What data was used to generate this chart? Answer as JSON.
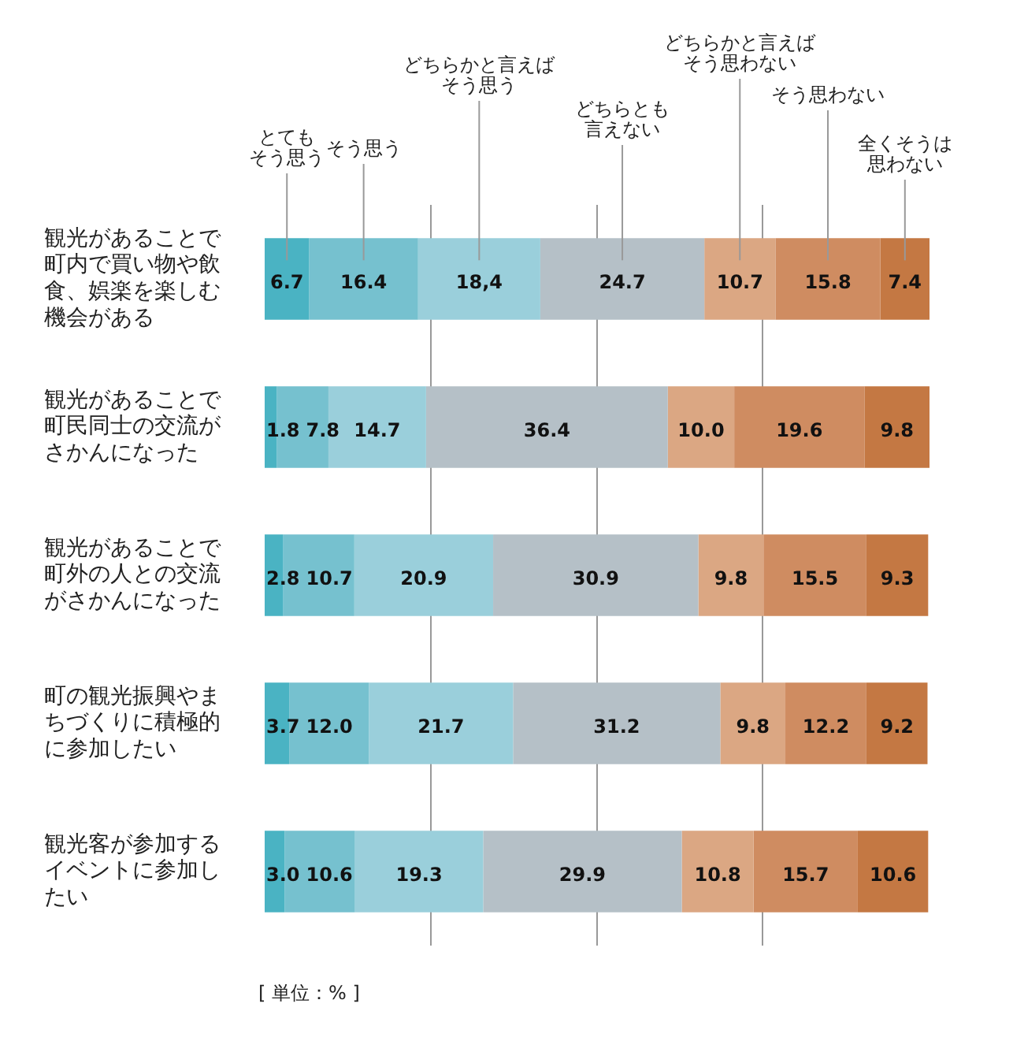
{
  "chart_data": {
    "type": "bar",
    "orientation": "horizontal",
    "stacked": true,
    "categories": [
      "観光があることで町内で買い物や飲食、娯楽を楽しむ機会がある",
      "観光があることで町民同士の交流がさかんになった",
      "観光があることで町外の人との交流がさかんになった",
      "町の観光振興やまちづくりに積極的に参加したい",
      "観光客が参加するイベントに参加したい"
    ],
    "series": [
      {
        "name": "とてもそう思う",
        "color": "#4ab3c3",
        "values": [
          6.7,
          1.8,
          2.8,
          3.7,
          3.0
        ],
        "value_labels": [
          "6.7",
          "1.8",
          "2.8",
          "3.7",
          "3.0"
        ]
      },
      {
        "name": "そう思う",
        "color": "#76c1cf",
        "values": [
          16.4,
          7.8,
          10.7,
          12.0,
          10.6
        ],
        "value_labels": [
          "16.4",
          "7.8",
          "10.7",
          "12.0",
          "10.6"
        ]
      },
      {
        "name": "どちらかと言えばそう思う",
        "color": "#9acfdb",
        "values": [
          18.4,
          14.7,
          20.9,
          21.7,
          19.3
        ],
        "value_labels": [
          "18,4",
          "14.7",
          "20.9",
          "21.7",
          "19.3"
        ]
      },
      {
        "name": "どちらとも言えない",
        "color": "#b5c0c7",
        "values": [
          24.7,
          36.4,
          30.9,
          31.2,
          29.9
        ],
        "value_labels": [
          "24.7",
          "36.4",
          "30.9",
          "31.2",
          "29.9"
        ]
      },
      {
        "name": "どちらかと言えばそう思わない",
        "color": "#dba783",
        "values": [
          10.7,
          10.0,
          9.8,
          9.8,
          10.8
        ],
        "value_labels": [
          "10.7",
          "10.0",
          "9.8",
          "9.8",
          "10.8"
        ]
      },
      {
        "name": "そう思わない",
        "color": "#cf8c61",
        "values": [
          15.8,
          19.6,
          15.5,
          12.2,
          15.7
        ],
        "value_labels": [
          "15.8",
          "19.6",
          "15.5",
          "12.2",
          "15.7"
        ]
      },
      {
        "name": "全くそうは思わない",
        "color": "#c47843",
        "values": [
          7.4,
          9.8,
          9.3,
          9.2,
          10.6
        ],
        "value_labels": [
          "7.4",
          "9.8",
          "9.3",
          "9.2",
          "10.6"
        ]
      }
    ],
    "xlim": [
      0,
      100.1
    ],
    "xticks": [
      {
        "value": 25,
        "label": null
      },
      {
        "value": 50,
        "label": null
      },
      {
        "value": 75,
        "label": null
      }
    ],
    "grid": "x",
    "tick_labels": "y",
    "legend": "top",
    "annotations": [
      "[ 単位：% ]"
    ]
  }
}
